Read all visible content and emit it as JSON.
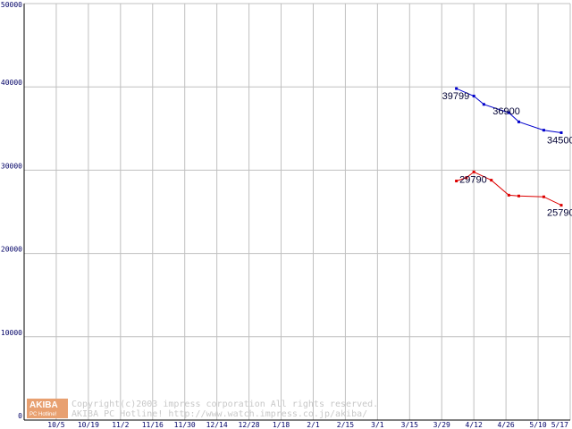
{
  "chart_data": {
    "type": "line",
    "title": "",
    "xlabel": "",
    "ylabel": "",
    "ylim": [
      0,
      50000
    ],
    "y_ticks": [
      0,
      10000,
      20000,
      30000,
      40000,
      50000
    ],
    "x_ticks": [
      "10/5",
      "10/19",
      "11/2",
      "11/16",
      "11/30",
      "12/14",
      "12/28",
      "1/18",
      "2/1",
      "2/15",
      "3/1",
      "3/15",
      "3/29",
      "4/12",
      "4/26",
      "5/10",
      "5/17"
    ],
    "grid": true,
    "x": [
      "4/5",
      "4/9",
      "4/12",
      "4/16",
      "4/19",
      "4/26",
      "4/30",
      "5/3",
      "5/10",
      "5/17"
    ],
    "series": [
      {
        "color": "#0000cc",
        "values": [
          39799,
          null,
          38900,
          37900,
          null,
          36900,
          35800,
          null,
          34800,
          34500
        ],
        "labels": {
          "0": "39799",
          "5": "36900",
          "9": "34500"
        }
      },
      {
        "color": "#dd0000",
        "values": [
          28700,
          29100,
          29790,
          null,
          28800,
          27000,
          26900,
          null,
          26800,
          25790
        ],
        "labels": {
          "2": "29790",
          "9": "25790"
        }
      }
    ]
  },
  "watermark": {
    "logo_main": "AKIBA",
    "logo_sub": "PC Hotline!",
    "copyright_line1": "Copyright(c)2003 impress corporation All rights reserved.",
    "copyright_line2": "AKIBA PC Hotline!  http://www.watch.impress.co.jp/akiba/"
  }
}
